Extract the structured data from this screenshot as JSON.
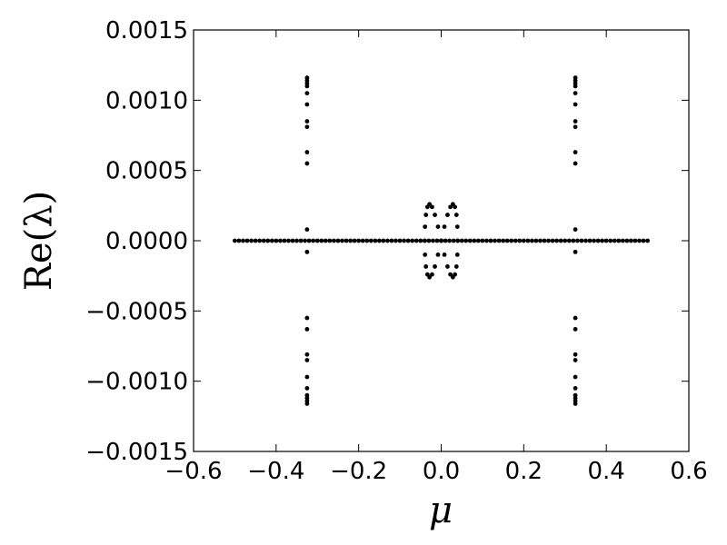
{
  "chart_data": {
    "type": "scatter",
    "xlabel": "μ",
    "ylabel": "Re(λ)",
    "xlim": [
      -0.6,
      0.6
    ],
    "ylim": [
      -0.0015,
      0.0015
    ],
    "xticks": [
      {
        "value": -0.6,
        "label": "−0.6"
      },
      {
        "value": -0.4,
        "label": "−0.4"
      },
      {
        "value": -0.2,
        "label": "−0.2"
      },
      {
        "value": 0,
        "label": "0.0"
      },
      0.2,
      0.4,
      0.6
    ],
    "yticks": [
      {
        "value": -0.0015,
        "label": "−0.0015"
      },
      {
        "value": -0.001,
        "label": "−0.0010"
      },
      {
        "value": -0.0005,
        "label": "−0.0005"
      },
      {
        "value": 0,
        "label": "0.0000"
      },
      0.0005,
      {
        "value": 0.001,
        "label": "0.0010"
      },
      0.0015
    ],
    "grid": false,
    "series": [
      {
        "color": "#000000",
        "x": [
          -0.5,
          -0.49,
          -0.48,
          -0.47,
          -0.46,
          -0.45,
          -0.44,
          -0.43,
          -0.42,
          -0.41,
          -0.4,
          -0.39,
          -0.38,
          -0.37,
          -0.36,
          -0.35,
          -0.34,
          -0.33,
          -0.32,
          -0.31,
          -0.3,
          -0.29,
          -0.28,
          -0.27,
          -0.26,
          -0.25,
          -0.24,
          -0.23,
          -0.22,
          -0.21,
          -0.2,
          -0.19,
          -0.18,
          -0.17,
          -0.16,
          -0.15,
          -0.14,
          -0.13,
          -0.12,
          -0.11,
          -0.1,
          -0.09,
          -0.08,
          -0.07,
          -0.06,
          -0.05,
          -0.04,
          -0.03,
          -0.02,
          -0.01,
          0,
          0.01,
          0.02,
          0.03,
          0.04,
          0.05,
          0.06,
          0.07,
          0.08,
          0.09,
          0.1,
          0.11,
          0.12,
          0.13,
          0.14,
          0.15,
          0.16,
          0.17,
          0.18,
          0.19,
          0.2,
          0.21,
          0.22,
          0.23,
          0.24,
          0.25,
          0.26,
          0.27,
          0.28,
          0.29,
          0.3,
          0.31,
          0.32,
          0.33,
          0.34,
          0.35,
          0.36,
          0.37,
          0.38,
          0.39,
          0.4,
          0.41,
          0.42,
          0.43,
          0.44,
          0.45,
          0.46,
          0.47,
          0.48,
          0.49,
          0.5
        ],
        "values": [
          0,
          0,
          0,
          0,
          0,
          0,
          0,
          0,
          0,
          0,
          0,
          0,
          0,
          0,
          0,
          0,
          0,
          0,
          0,
          0,
          0,
          0,
          0,
          0,
          0,
          0,
          0,
          0,
          0,
          0,
          0,
          0,
          0,
          0,
          0,
          0,
          0,
          0,
          0,
          0,
          0,
          0,
          0,
          0,
          0,
          0,
          0,
          0,
          0,
          0,
          0,
          0,
          0,
          0,
          0,
          0,
          0,
          0,
          0,
          0,
          0,
          0,
          0,
          0,
          0,
          0,
          0,
          0,
          0,
          0,
          0,
          0,
          0,
          0,
          0,
          0,
          0,
          0,
          0,
          0,
          0,
          0,
          0,
          0,
          0,
          0,
          0,
          0,
          0,
          0,
          0,
          0,
          0,
          0,
          0,
          0,
          0,
          0,
          0,
          0,
          0
        ]
      },
      {
        "color": "#000000",
        "x": [
          0,
          0.0078,
          0.0153,
          0.0222,
          0.0283,
          0.0333,
          0.037,
          0.0392,
          0.04,
          0.0392,
          0.037,
          0.0333,
          0.0283,
          0.0222,
          0.0153,
          0.0078,
          0,
          -0.0078,
          -0.0153,
          -0.0222,
          -0.0283,
          -0.0333,
          -0.037,
          -0.0392,
          -0.04,
          -0.0392,
          -0.037,
          -0.0333,
          -0.0283,
          -0.0222,
          -0.0153,
          -0.0078
        ],
        "values": [
          0,
          9.95e-05,
          0.0001838,
          0.0002402,
          0.00026,
          0.0002402,
          0.0001838,
          9.95e-05,
          0,
          -9.95e-05,
          -0.0001838,
          -0.0002402,
          -0.00026,
          -0.0002402,
          -0.0001838,
          -9.95e-05,
          0,
          9.95e-05,
          0.0001838,
          0.0002402,
          0.00026,
          0.0002402,
          0.0001838,
          9.95e-05,
          0,
          -9.95e-05,
          -0.0001838,
          -0.0002402,
          -0.00026,
          -0.0002402,
          -0.0001838,
          -9.95e-05
        ]
      },
      {
        "color": "#000000",
        "x": [
          -0.325,
          -0.325,
          -0.325,
          -0.325,
          -0.325,
          -0.325,
          -0.325,
          -0.325,
          -0.325,
          -0.325,
          -0.325,
          -0.325,
          -0.325,
          -0.325,
          -0.325,
          -0.325,
          -0.325,
          -0.325,
          -0.325,
          -0.325,
          -0.325,
          -0.325,
          0.325,
          0.325,
          0.325,
          0.325,
          0.325,
          0.325,
          0.325,
          0.325,
          0.325,
          0.325,
          0.325,
          0.325,
          0.325,
          0.325,
          0.325,
          0.325,
          0.325,
          0.325,
          0.325,
          0.325,
          0.325,
          0.325
        ],
        "values": [
          0.00116,
          0.00114,
          0.00112,
          0.0011,
          0.00105,
          0.00097,
          0.00085,
          0.00081,
          0.00063,
          0.00055,
          8e-05,
          -8e-05,
          -0.00055,
          -0.00063,
          -0.00081,
          -0.00085,
          -0.00097,
          -0.00105,
          -0.0011,
          -0.00112,
          -0.00114,
          -0.00116,
          0.00116,
          0.00114,
          0.00112,
          0.0011,
          0.00105,
          0.00097,
          0.00085,
          0.00081,
          0.00063,
          0.00055,
          8e-05,
          -8e-05,
          -0.00055,
          -0.00063,
          -0.00081,
          -0.00085,
          -0.00097,
          -0.00105,
          -0.0011,
          -0.00112,
          -0.00114,
          -0.00116
        ]
      }
    ]
  }
}
